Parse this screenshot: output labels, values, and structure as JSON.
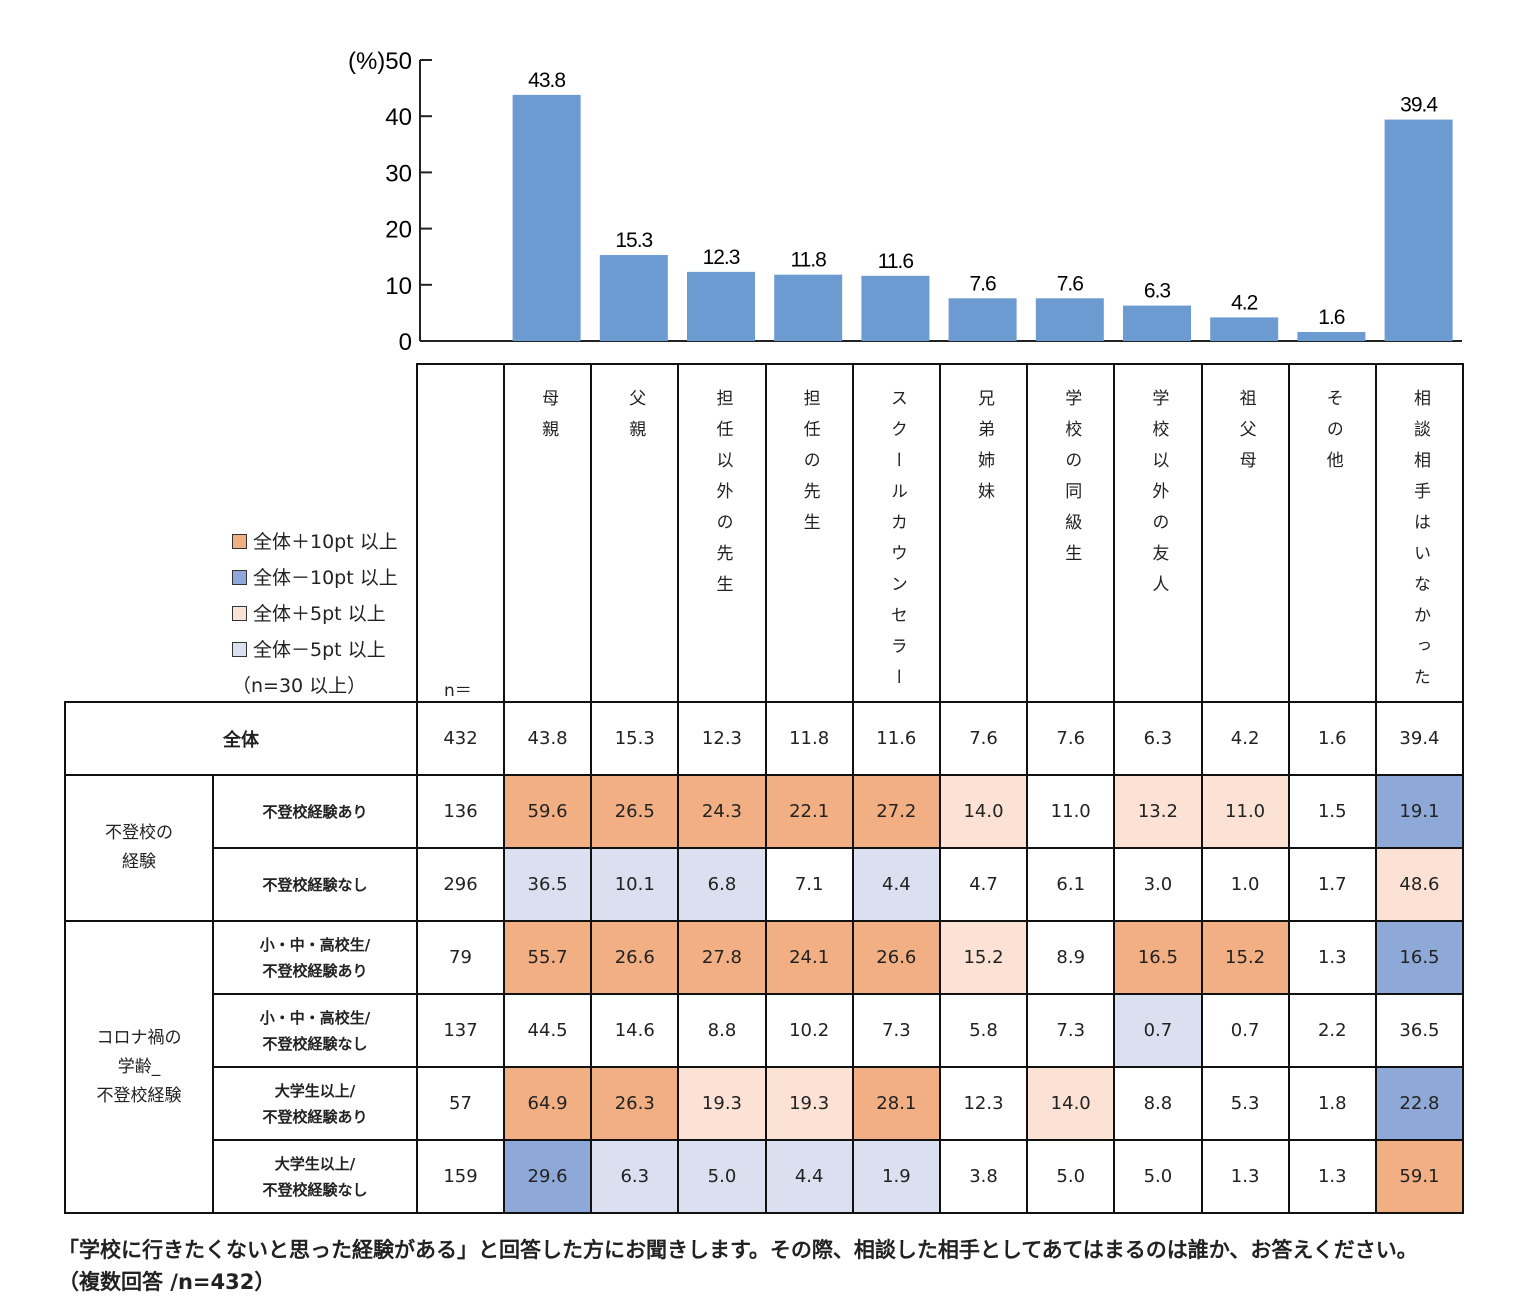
{
  "chart_data": {
    "type": "bar",
    "ylabel": "(%)",
    "ylim": [
      0,
      50
    ],
    "yticks": [
      0,
      10,
      20,
      30,
      40,
      50
    ],
    "grid": false,
    "bar_color": "#6B9BD1",
    "categories": [
      "母親",
      "父親",
      "担任以外の先生",
      "担任の先生",
      "スクールカウンセラー",
      "兄弟姉妹",
      "学校の同級生",
      "学校以外の友人",
      "祖父母",
      "その他",
      "相談相手はいなかった"
    ],
    "values": [
      43.8,
      15.3,
      12.3,
      11.8,
      11.6,
      7.6,
      7.6,
      6.3,
      4.2,
      1.6,
      39.4
    ]
  },
  "legend": {
    "items": [
      {
        "label": "全体＋10pt 以上",
        "color": "#F2AF84"
      },
      {
        "label": "全体－10pt 以上",
        "color": "#8EA9D8"
      },
      {
        "label": "全体＋5pt 以上",
        "color": "#FBE2D5"
      },
      {
        "label": "全体－5pt 以上",
        "color": "#DAE0F0"
      }
    ],
    "note": "（n=30 以上）"
  },
  "table": {
    "n_label": "n＝",
    "total": {
      "label": "全体",
      "n": "432",
      "values": [
        "43.8",
        "15.3",
        "12.3",
        "11.8",
        "11.6",
        "7.6",
        "7.6",
        "6.3",
        "4.2",
        "1.6",
        "39.4"
      ]
    },
    "groups": [
      {
        "label": "不登校の\n経験",
        "rows": [
          {
            "label": "不登校経験あり",
            "n": "136",
            "values": [
              "59.6",
              "26.5",
              "24.3",
              "22.1",
              "27.2",
              "14.0",
              "11.0",
              "13.2",
              "11.0",
              "1.5",
              "19.1"
            ],
            "marks": [
              "o",
              "o",
              "o",
              "o",
              "o",
              "p",
              "",
              "p",
              "p",
              "",
              "b"
            ]
          },
          {
            "label": "不登校経験なし",
            "n": "296",
            "values": [
              "36.5",
              "10.1",
              "6.8",
              "7.1",
              "4.4",
              "4.7",
              "6.1",
              "3.0",
              "1.0",
              "1.7",
              "48.6"
            ],
            "marks": [
              "l",
              "l",
              "l",
              "",
              "l",
              "",
              "",
              "",
              "",
              "",
              "p"
            ]
          }
        ]
      },
      {
        "label": "コロナ禍の\n学齢_\n不登校経験",
        "rows": [
          {
            "label": "小・中・高校生/\n不登校経験あり",
            "n": "79",
            "values": [
              "55.7",
              "26.6",
              "27.8",
              "24.1",
              "26.6",
              "15.2",
              "8.9",
              "16.5",
              "15.2",
              "1.3",
              "16.5"
            ],
            "marks": [
              "o",
              "o",
              "o",
              "o",
              "o",
              "p",
              "",
              "o",
              "o",
              "",
              "b"
            ]
          },
          {
            "label": "小・中・高校生/\n不登校経験なし",
            "n": "137",
            "values": [
              "44.5",
              "14.6",
              "8.8",
              "10.2",
              "7.3",
              "5.8",
              "7.3",
              "0.7",
              "0.7",
              "2.2",
              "36.5"
            ],
            "marks": [
              "",
              "",
              "",
              "",
              "",
              "",
              "",
              "l",
              "",
              "",
              ""
            ]
          },
          {
            "label": "大学生以上/\n不登校経験あり",
            "n": "57",
            "values": [
              "64.9",
              "26.3",
              "19.3",
              "19.3",
              "28.1",
              "12.3",
              "14.0",
              "8.8",
              "5.3",
              "1.8",
              "22.8"
            ],
            "marks": [
              "o",
              "o",
              "p",
              "p",
              "o",
              "",
              "p",
              "",
              "",
              "",
              "b"
            ]
          },
          {
            "label": "大学生以上/\n不登校経験なし",
            "n": "159",
            "values": [
              "29.6",
              "6.3",
              "5.0",
              "4.4",
              "1.9",
              "3.8",
              "5.0",
              "5.0",
              "1.3",
              "1.3",
              "59.1"
            ],
            "marks": [
              "b",
              "l",
              "l",
              "l",
              "l",
              "",
              "",
              "",
              "",
              "",
              "o"
            ]
          }
        ]
      }
    ]
  },
  "caption": {
    "line1": "「学校に行きたくないと思った経験がある」と回答した方にお聞きします。その際、相談した相手としてあてはまるのは誰か、お答えください。",
    "line2": "（複数回答 /n=432）"
  }
}
